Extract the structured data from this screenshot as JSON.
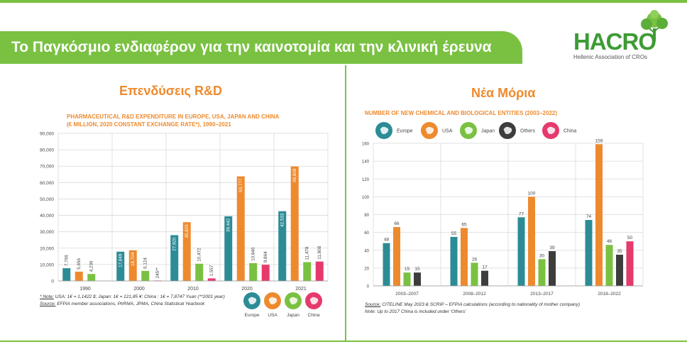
{
  "header": {
    "title": "Το Παγκόσμιο ενδιαφέρον για την καινοτομία και την κλινική έρευνα",
    "logo_text": "HACRO",
    "logo_subtitle": "Hellenic Association of CROs"
  },
  "colors": {
    "europe": "#2c8c96",
    "usa": "#ee8a2e",
    "japan": "#7ac142",
    "others": "#3d3d3d",
    "china": "#e6396c",
    "accent": "#7ac142"
  },
  "left": {
    "heading": "Επενδύσεις R&D",
    "subtitle_line1": "PHARMACEUTICAL R&D EXPENDITURE IN EUROPE, USA, JAPAN AND CHINA",
    "subtitle_line2": "(€ MILLION, 2020 CONSTANT EXCHANGE RATE*), 1990–2021",
    "note_label": "* Note:",
    "note_text": " USA: 1€ = 1,1422 $; Japan: 1€ = 121,85 ¥; China : 1€ = 7,8747 Yuan (**2001 year)",
    "source_label": "Source:",
    "source_text": " EFPIA member associations, PhRMA, JPMA, China Statistical Yearbook"
  },
  "right": {
    "heading": "Νέα Μόρια",
    "subtitle": "NUMBER OF NEW CHEMICAL AND BIOLOGICAL ENTITIES (2003–2022)",
    "source_label": "Source:",
    "source_text": " CITELINE May 2023 & SCRIP – EFPIA calculations (according to nationality of mother company)",
    "note_text": "Note: Up to 2017 China is included under 'Others'"
  },
  "chart_data": [
    {
      "type": "bar",
      "categories": [
        "1990",
        "2000",
        "2010",
        "2020",
        "2021"
      ],
      "ylim": [
        0,
        90000
      ],
      "yticks": [
        "0",
        "10,000",
        "20,000",
        "30,000",
        "40,000",
        "50,000",
        "60,000",
        "70,000",
        "80,000",
        "90,000"
      ],
      "legend_placement": "bottom-right",
      "series": [
        {
          "name": "Europe",
          "key": "europe",
          "values": [
            7766,
            17849,
            27920,
            39442,
            42533
          ],
          "labels": [
            "7,766",
            "17,849",
            "27,920",
            "39,442",
            "42,533"
          ]
        },
        {
          "name": "USA",
          "key": "usa",
          "values": [
            5656,
            18704,
            35825,
            63777,
            69809
          ],
          "labels": [
            "5,656",
            "18,704",
            "35,825",
            "63,777",
            "69,809"
          ]
        },
        {
          "name": "Japan",
          "key": "japan",
          "values": [
            4236,
            6124,
            10472,
            10846,
            11478
          ],
          "labels": [
            "4,236",
            "6,124",
            "10,472",
            "10,846",
            "11,478"
          ]
        },
        {
          "name": "China",
          "key": "china",
          "values": [
            null,
            245,
            1557,
            9864,
            11808
          ],
          "labels": [
            "",
            "245**",
            "1,557",
            "9,864",
            "11,808"
          ]
        }
      ]
    },
    {
      "type": "bar",
      "categories": [
        "2003–2007",
        "2008–2012",
        "2013–2017",
        "2018–2022"
      ],
      "ylim": [
        0,
        160
      ],
      "yticks": [
        "0",
        "20",
        "40",
        "60",
        "80",
        "100",
        "120",
        "140",
        "160"
      ],
      "legend_placement": "top",
      "series": [
        {
          "name": "Europe",
          "key": "europe",
          "values": [
            48,
            55,
            77,
            74
          ],
          "labels": [
            "48",
            "55",
            "77",
            "74"
          ]
        },
        {
          "name": "USA",
          "key": "usa",
          "values": [
            66,
            65,
            100,
            159
          ],
          "labels": [
            "66",
            "65",
            "100",
            "159"
          ]
        },
        {
          "name": "Japan",
          "key": "japan",
          "values": [
            15,
            26,
            30,
            46
          ],
          "labels": [
            "15",
            "26",
            "30",
            "46"
          ]
        },
        {
          "name": "Others",
          "key": "others",
          "values": [
            15,
            17,
            39,
            35
          ],
          "labels": [
            "15",
            "17",
            "39",
            "35"
          ]
        },
        {
          "name": "China",
          "key": "china",
          "values": [
            null,
            null,
            null,
            50
          ],
          "labels": [
            "",
            "",
            "",
            "50"
          ]
        }
      ]
    }
  ]
}
